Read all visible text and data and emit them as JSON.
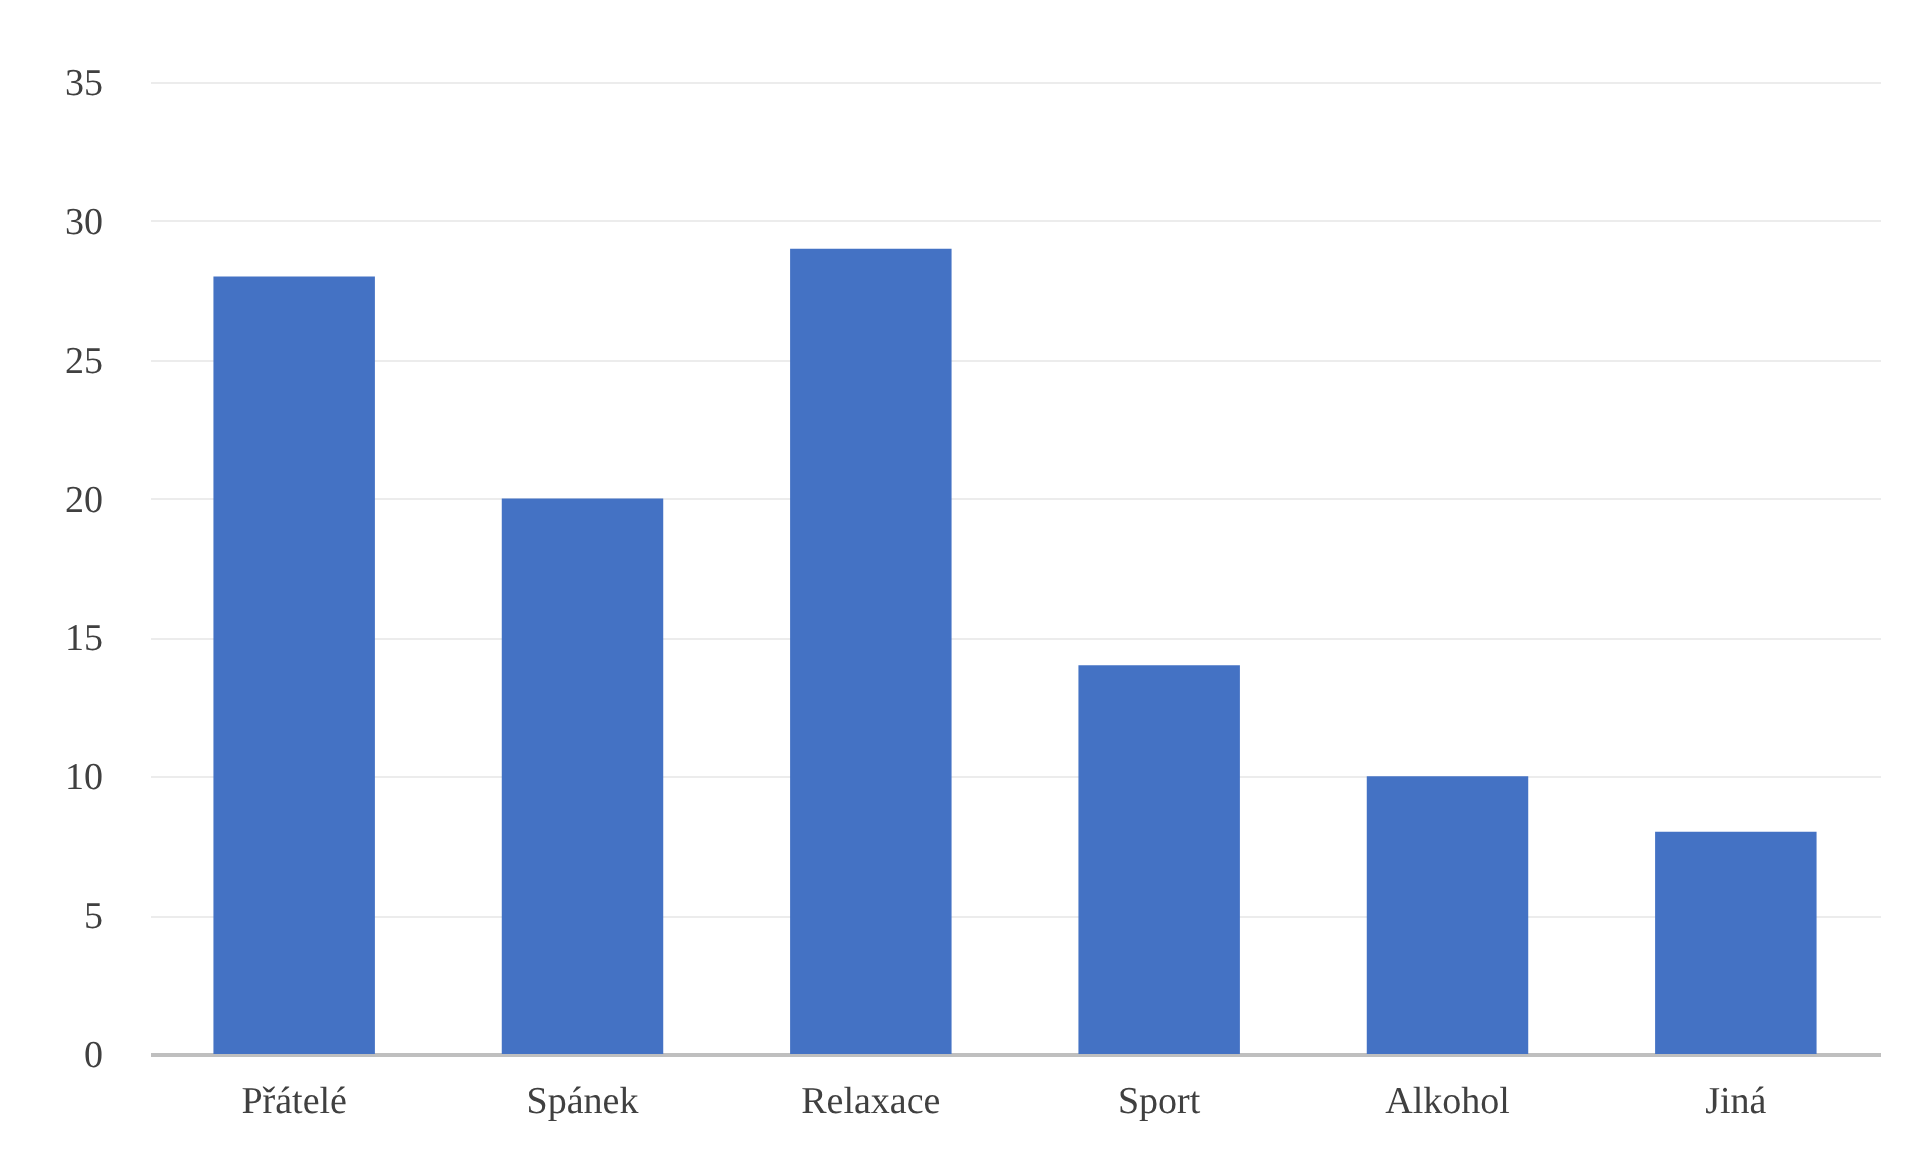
{
  "chart_data": {
    "type": "bar",
    "categories": [
      "Přátelé",
      "Spánek",
      "Relaxace",
      "Sport",
      "Alkohol",
      "Jiná"
    ],
    "values": [
      28,
      20,
      29,
      14,
      10,
      8
    ],
    "color": "#4472c4",
    "ylim": [
      0,
      35
    ],
    "yticks": [
      0,
      5,
      10,
      15,
      20,
      25,
      30,
      35
    ],
    "grid": "y"
  }
}
